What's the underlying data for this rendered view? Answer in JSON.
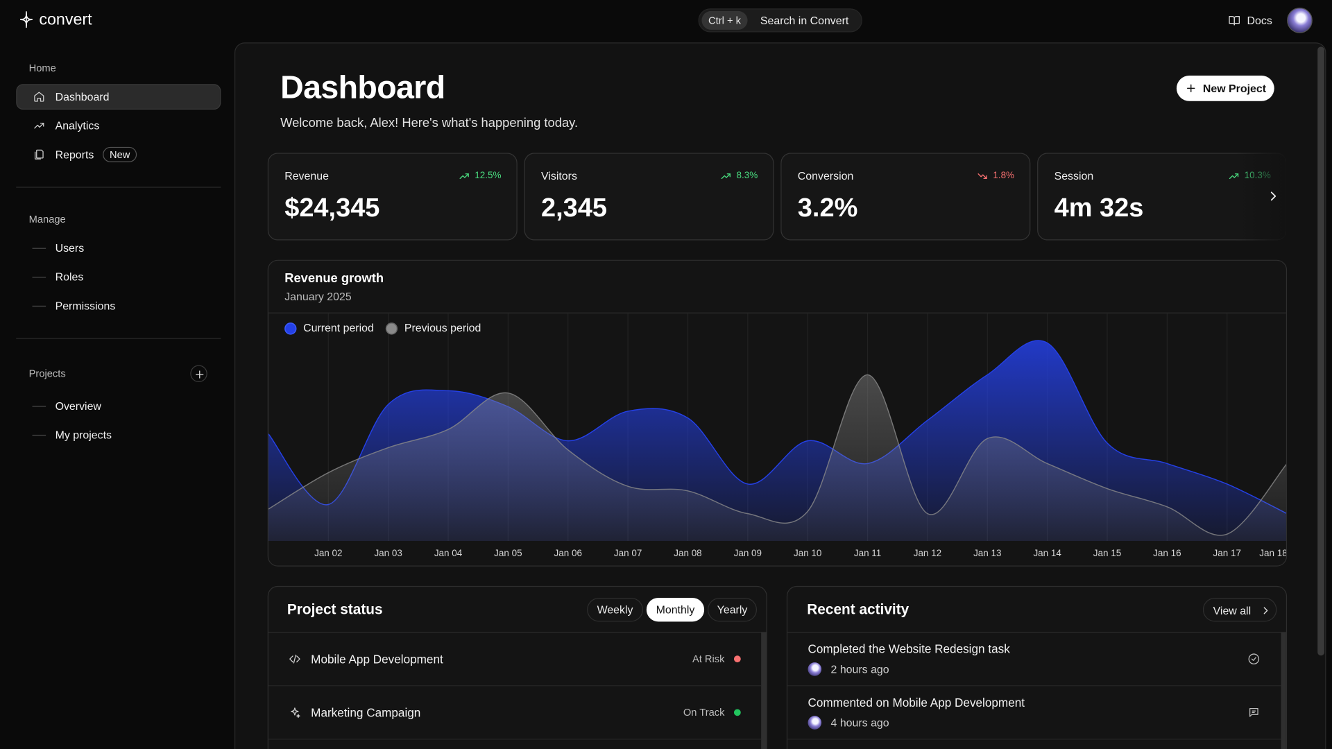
{
  "app": {
    "brand": "convert",
    "search_shortcut": "Ctrl + k",
    "search_placeholder": "Search in Convert",
    "docs": "Docs"
  },
  "sidebar": {
    "sections": [
      {
        "title": "Home",
        "items": [
          {
            "label": "Dashboard",
            "active": true
          },
          {
            "label": "Analytics"
          },
          {
            "label": "Reports",
            "badge": "New"
          }
        ]
      },
      {
        "title": "Manage",
        "items": [
          {
            "label": "Users"
          },
          {
            "label": "Roles"
          },
          {
            "label": "Permissions"
          }
        ]
      },
      {
        "title": "Projects",
        "items": [
          {
            "label": "Overview"
          },
          {
            "label": "My projects"
          }
        ]
      }
    ]
  },
  "header": {
    "title": "Dashboard",
    "subtitle": "Welcome back, Alex! Here's what's happening today.",
    "action": "New Project"
  },
  "stats": [
    {
      "label": "Revenue",
      "value": "$24,345",
      "change": "12.5%",
      "trend": "up"
    },
    {
      "label": "Visitors",
      "value": "2,345",
      "change": "8.3%",
      "trend": "up"
    },
    {
      "label": "Conversion",
      "value": "3.2%",
      "change": "1.8%",
      "trend": "down"
    },
    {
      "label": "Session",
      "value": "4m 32s",
      "change": "10.3%",
      "trend": "up"
    }
  ],
  "chart_data": {
    "type": "area",
    "title": "Revenue growth",
    "subtitle": "January 2025",
    "categories": [
      null,
      "Jan 02",
      "Jan 03",
      "Jan 04",
      "Jan 05",
      "Jan 06",
      "Jan 07",
      "Jan 08",
      "Jan 09",
      "Jan 10",
      "Jan 11",
      "Jan 12",
      "Jan 13",
      "Jan 14",
      "Jan 15",
      "Jan 16",
      "Jan 17",
      "Jan 18"
    ],
    "series": [
      {
        "name": "Current period",
        "color": "#2440e6",
        "values": [
          47,
          16,
          60,
          66,
          59,
          44,
          57,
          54,
          25,
          44,
          34,
          53,
          73,
          87,
          43,
          34,
          25,
          12
        ]
      },
      {
        "name": "Previous period",
        "color": "#8a8a8a",
        "values": [
          14,
          30,
          41,
          49,
          65,
          40,
          24,
          22,
          12,
          13,
          73,
          12,
          45,
          34,
          23,
          15,
          3,
          34
        ]
      }
    ],
    "ylim": [
      0,
      100
    ],
    "grid": true
  },
  "project_status": {
    "title": "Project status",
    "tabs": [
      {
        "label": "Weekly"
      },
      {
        "label": "Monthly",
        "active": true
      },
      {
        "label": "Yearly"
      }
    ],
    "rows": [
      {
        "name": "Mobile App Development",
        "status": "At Risk",
        "status_color": "#f87171"
      },
      {
        "name": "Marketing Campaign",
        "status": "On Track",
        "status_color": "#22c55e"
      }
    ]
  },
  "recent_activity": {
    "title": "Recent activity",
    "action": "View all",
    "items": [
      {
        "text": "Completed the Website Redesign task",
        "time": "2 hours ago"
      },
      {
        "text": "Commented on Mobile App Development",
        "time": "4 hours ago"
      }
    ]
  }
}
